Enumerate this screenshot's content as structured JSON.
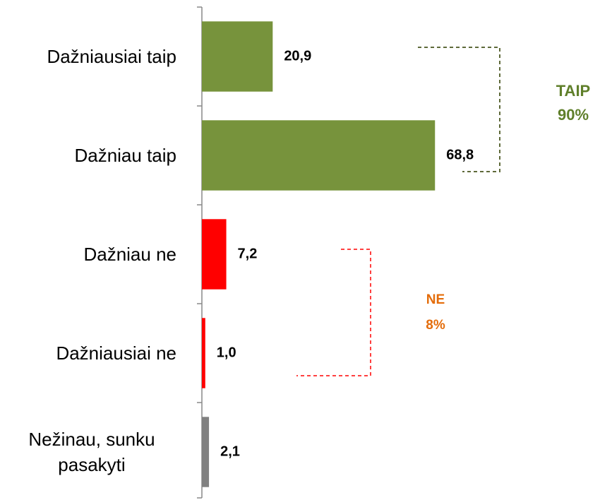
{
  "chart_data": {
    "type": "bar",
    "orientation": "horizontal",
    "categories": [
      "Dažniausiai taip",
      "Dažniau taip",
      "Dažniau ne",
      "Dažniausiai ne",
      "Nežinau, sunku pasakyti"
    ],
    "values": [
      20.9,
      68.8,
      7.2,
      1.0,
      2.1
    ],
    "value_labels": [
      "20,9",
      "68,8",
      "7,2",
      "1,0",
      "2,1"
    ],
    "colors": [
      "#77933c",
      "#77933c",
      "#ff0000",
      "#ff0000",
      "#808080"
    ],
    "xlim": [
      0,
      100
    ],
    "annotations": [
      {
        "lines": [
          "TAIP",
          "90%"
        ],
        "color": "#5f7f2a"
      },
      {
        "lines": [
          "NE",
          "8%"
        ],
        "color": "#e46c0a"
      }
    ]
  }
}
